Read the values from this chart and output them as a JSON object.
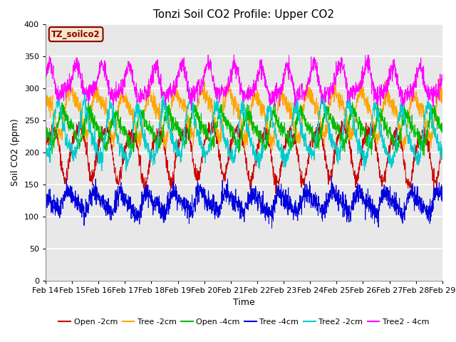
{
  "title": "Tonzi Soil CO2 Profile: Upper CO2",
  "xlabel": "Time",
  "ylabel": "Soil CO2 (ppm)",
  "ylim": [
    0,
    400
  ],
  "xlim_days": 15,
  "x_tick_labels": [
    "Feb 14",
    "Feb 15",
    "Feb 16",
    "Feb 17",
    "Feb 18",
    "Feb 19",
    "Feb 20",
    "Feb 21",
    "Feb 22",
    "Feb 23",
    "Feb 24",
    "Feb 25",
    "Feb 26",
    "Feb 27",
    "Feb 28",
    "Feb 29"
  ],
  "annotation_text": "TZ_soilco2",
  "annotation_color": "#8B0000",
  "annotation_bg": "#F5E6C8",
  "annotation_border": "#8B0000",
  "series": [
    {
      "label": "Open -2cm",
      "color": "#CC0000",
      "base": 200,
      "amp": 38,
      "phase": 0.0,
      "noise": 6,
      "amp2": 8,
      "phase2": 0.3
    },
    {
      "label": "Tree -2cm",
      "color": "#FFA500",
      "base": 262,
      "amp": 32,
      "phase": 0.25,
      "noise": 7,
      "amp2": 10,
      "phase2": 0.6
    },
    {
      "label": "Open -4cm",
      "color": "#00BB00",
      "base": 238,
      "amp": 22,
      "phase": 0.55,
      "noise": 6,
      "amp2": 8,
      "phase2": 0.1
    },
    {
      "label": "Tree -4cm",
      "color": "#0000DD",
      "base": 122,
      "amp": 14,
      "phase": 0.35,
      "noise": 8,
      "amp2": 5,
      "phase2": 0.7
    },
    {
      "label": "Tree2 -2cm",
      "color": "#00CCCC",
      "base": 228,
      "amp": 38,
      "phase": 0.75,
      "noise": 7,
      "amp2": 10,
      "phase2": 0.4
    },
    {
      "label": "Tree2 - 4cm",
      "color": "#FF00FF",
      "base": 307,
      "amp": 22,
      "phase": 0.12,
      "noise": 7,
      "amp2": 8,
      "phase2": 0.9
    }
  ],
  "background_color": "#E8E8E8",
  "grid_color": "#FFFFFF",
  "fig_bg": "#FFFFFF",
  "title_fontsize": 11,
  "axis_fontsize": 9,
  "legend_fontsize": 8,
  "tick_fontsize": 8
}
